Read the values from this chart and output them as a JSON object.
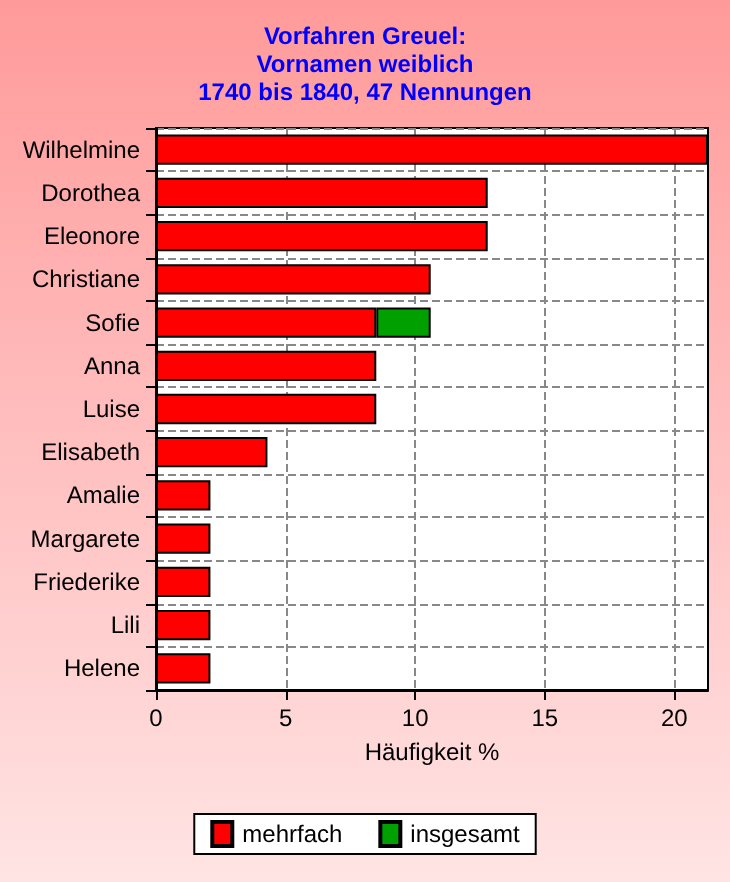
{
  "chart_data": {
    "type": "bar",
    "orientation": "horizontal",
    "stacked": true,
    "title": "Vorfahren Greuel:\nVornamen weiblich\n1740 bis 1840, 47 Nennungen",
    "xlabel": "Häufigkeit %",
    "categories": [
      "Wilhelmine",
      "Dorothea",
      "Eleonore",
      "Christiane",
      "Sofie",
      "Anna",
      "Luise",
      "Elisabeth",
      "Amalie",
      "Margarete",
      "Friederike",
      "Lili",
      "Helene"
    ],
    "series": [
      {
        "name": "mehrfach",
        "color": "#ff0000",
        "values": [
          21.3,
          12.8,
          12.8,
          10.6,
          8.5,
          8.5,
          8.5,
          4.3,
          2.1,
          2.1,
          2.1,
          2.1,
          2.1
        ]
      },
      {
        "name": "insgesamt",
        "color": "#00a000",
        "values": [
          null,
          null,
          null,
          null,
          2.1,
          null,
          null,
          null,
          null,
          null,
          null,
          null,
          null
        ]
      }
    ],
    "xlim": [
      0,
      21.3
    ],
    "xticks": [
      0,
      5,
      10,
      15,
      20
    ],
    "grid": true,
    "legend": "bottom"
  }
}
